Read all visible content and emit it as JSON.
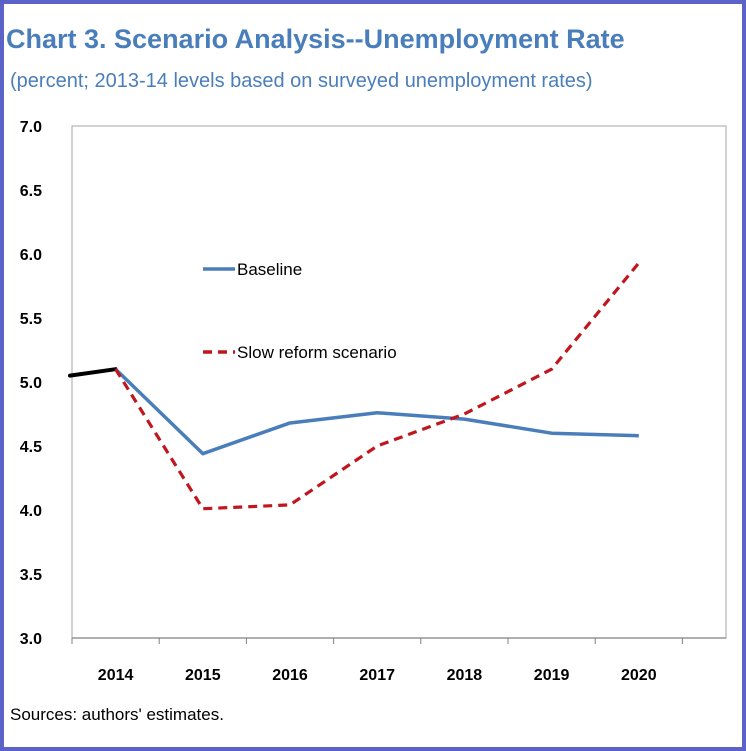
{
  "title": "Chart 3. Scenario Analysis--Unemployment Rate",
  "subtitle": "(percent; 2013-14 levels based on surveyed unemployment rates)",
  "source": "Sources: authors' estimates.",
  "chart_data": {
    "type": "line",
    "x": [
      "2014",
      "2015",
      "2016",
      "2017",
      "2018",
      "2019",
      "2020"
    ],
    "ylim": [
      3.0,
      7.0
    ],
    "yticks": [
      "7.0",
      "6.5",
      "6.0",
      "5.5",
      "5.0",
      "4.5",
      "4.0",
      "3.5",
      "3.0"
    ],
    "grid": false,
    "legend_position": "center-left",
    "history": {
      "x": [
        "2013",
        "2014"
      ],
      "values": [
        5.05,
        5.1
      ],
      "color": "#000000"
    },
    "series": [
      {
        "name": "Baseline",
        "values": [
          5.1,
          4.44,
          4.68,
          4.76,
          4.71,
          4.6,
          4.58
        ],
        "color": "#4a7ebb",
        "style": "solid"
      },
      {
        "name": "Slow reform scenario",
        "values": [
          5.1,
          4.01,
          4.04,
          4.5,
          4.75,
          5.1,
          5.93
        ],
        "color": "#c0161e",
        "style": "dashed"
      }
    ]
  }
}
